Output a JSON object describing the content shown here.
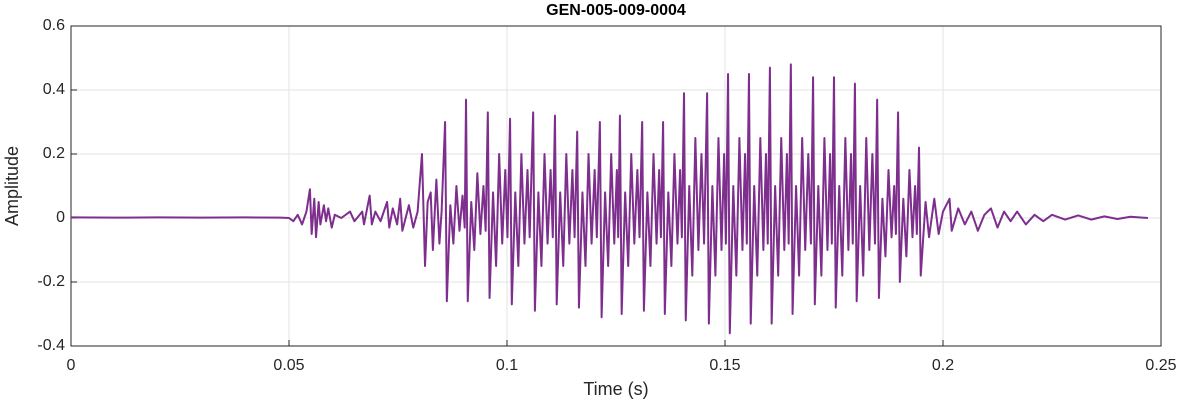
{
  "chart_data": {
    "type": "line",
    "title": "GEN-005-009-0004",
    "xlabel": "Time (s)",
    "ylabel": "Amplitude",
    "xlim": [
      0,
      0.25
    ],
    "xticks": [
      0,
      0.05,
      0.1,
      0.15,
      0.2,
      0.25
    ],
    "ylim": [
      -0.4,
      0.6
    ],
    "yticks": [
      -0.4,
      -0.2,
      0,
      0.2,
      0.4,
      0.6
    ],
    "grid": true,
    "x": [
      0,
      0.01,
      0.02,
      0.03,
      0.04,
      0.048,
      0.05,
      0.051,
      0.052,
      0.053,
      0.054,
      0.0548,
      0.0552,
      0.0558,
      0.0562,
      0.0568,
      0.0572,
      0.058,
      0.0585,
      0.059,
      0.0598,
      0.0605,
      0.062,
      0.064,
      0.065,
      0.0668,
      0.0672,
      0.0685,
      0.069,
      0.0698,
      0.071,
      0.0725,
      0.073,
      0.0738,
      0.0748,
      0.0755,
      0.076,
      0.0775,
      0.0785,
      0.0795,
      0.0805,
      0.0812,
      0.0818,
      0.0825,
      0.083,
      0.0838,
      0.0845,
      0.085,
      0.0858,
      0.0862,
      0.087,
      0.0877,
      0.0884,
      0.0891,
      0.0898,
      0.0903,
      0.0906,
      0.091,
      0.0918,
      0.0925,
      0.0932,
      0.0939,
      0.0946,
      0.0951,
      0.0956,
      0.096,
      0.0968,
      0.0975,
      0.0982,
      0.0989,
      0.0996,
      0.1001,
      0.1007,
      0.1011,
      0.1019,
      0.1026,
      0.1033,
      0.104,
      0.1047,
      0.1052,
      0.106,
      0.1064,
      0.1072,
      0.1079,
      0.1086,
      0.1093,
      0.11,
      0.1105,
      0.111,
      0.1114,
      0.1122,
      0.1129,
      0.1136,
      0.1143,
      0.115,
      0.1155,
      0.1161,
      0.1165,
      0.1173,
      0.118,
      0.1187,
      0.1194,
      0.1201,
      0.1206,
      0.1213,
      0.1217,
      0.1225,
      0.1232,
      0.1239,
      0.1246,
      0.1252,
      0.1255,
      0.1259,
      0.1263,
      0.1271,
      0.1278,
      0.1285,
      0.1292,
      0.1299,
      0.1304,
      0.131,
      0.1314,
      0.1322,
      0.1329,
      0.1336,
      0.1343,
      0.1349,
      0.1353,
      0.1358,
      0.1362,
      0.137,
      0.1377,
      0.1384,
      0.1391,
      0.1397,
      0.1401,
      0.1406,
      0.141,
      0.1418,
      0.1425,
      0.1432,
      0.1439,
      0.1446,
      0.1452,
      0.1459,
      0.1463,
      0.1471,
      0.1478,
      0.1485,
      0.1492,
      0.1498,
      0.1502,
      0.1507,
      0.1511,
      0.1519,
      0.1526,
      0.1533,
      0.154,
      0.1546,
      0.155,
      0.1555,
      0.1559,
      0.1567,
      0.1574,
      0.1581,
      0.1588,
      0.1594,
      0.1598,
      0.1603,
      0.1607,
      0.1615,
      0.1622,
      0.1629,
      0.1636,
      0.1642,
      0.1646,
      0.1651,
      0.1655,
      0.1663,
      0.167,
      0.1677,
      0.1684,
      0.1691,
      0.1697,
      0.1702,
      0.1706,
      0.1714,
      0.1721,
      0.1728,
      0.1735,
      0.1741,
      0.1745,
      0.175,
      0.1754,
      0.1762,
      0.1769,
      0.1776,
      0.1783,
      0.1789,
      0.1793,
      0.1798,
      0.1802,
      0.181,
      0.1817,
      0.1824,
      0.1831,
      0.1838,
      0.1844,
      0.1849,
      0.1853,
      0.1861,
      0.1868,
      0.1875,
      0.1882,
      0.1888,
      0.1892,
      0.1897,
      0.1901,
      0.1909,
      0.1916,
      0.1923,
      0.193,
      0.1936,
      0.194,
      0.1945,
      0.1949,
      0.196,
      0.1968,
      0.198,
      0.199,
      0.2,
      0.2015,
      0.202,
      0.2035,
      0.205,
      0.2065,
      0.208,
      0.2095,
      0.211,
      0.2125,
      0.214,
      0.2155,
      0.217,
      0.219,
      0.221,
      0.223,
      0.225,
      0.228,
      0.231,
      0.234,
      0.237,
      0.24,
      0.243,
      0.247
    ],
    "series": [
      {
        "color": "#7e2f8e",
        "values": [
          0.002,
          0.001,
          0.002,
          0.001,
          0.002,
          0.001,
          0,
          -0.01,
          0.01,
          -0.02,
          0.02,
          0.09,
          -0.05,
          0.06,
          -0.06,
          0.05,
          -0.02,
          0.04,
          -0.01,
          0.03,
          -0.03,
          0.01,
          0,
          0.02,
          -0.01,
          0.02,
          -0.02,
          0.07,
          -0.02,
          0.02,
          -0.01,
          0.05,
          -0.03,
          0.03,
          -0.02,
          0.06,
          -0.04,
          0.04,
          -0.03,
          0.02,
          0.2,
          -0.15,
          0.05,
          0.08,
          -0.1,
          0.12,
          -0.08,
          0.02,
          0.3,
          -0.26,
          0.04,
          -0.08,
          0.1,
          -0.04,
          0.07,
          -0.03,
          0.37,
          -0.26,
          0.05,
          -0.1,
          0.14,
          -0.05,
          0.1,
          -0.04,
          0.33,
          -0.25,
          0.08,
          -0.15,
          0.2,
          -0.08,
          0.15,
          -0.06,
          0.31,
          -0.27,
          0.08,
          -0.15,
          0.2,
          -0.08,
          0.15,
          -0.06,
          0.33,
          -0.29,
          0.08,
          -0.15,
          0.2,
          -0.08,
          0.15,
          -0.06,
          0.32,
          -0.27,
          0.08,
          -0.15,
          0.2,
          -0.08,
          0.15,
          -0.06,
          0.27,
          -0.28,
          0.08,
          -0.15,
          0.2,
          -0.08,
          0.15,
          -0.06,
          0.3,
          -0.31,
          0.08,
          -0.15,
          0.2,
          -0.08,
          0.15,
          -0.06,
          0.32,
          -0.3,
          0.08,
          -0.15,
          0.2,
          -0.08,
          0.15,
          -0.06,
          0.3,
          -0.29,
          0.08,
          -0.15,
          0.2,
          -0.08,
          0.15,
          -0.06,
          0.3,
          -0.3,
          0.08,
          -0.15,
          0.2,
          -0.08,
          0.15,
          -0.06,
          0.39,
          -0.32,
          0.1,
          -0.18,
          0.25,
          -0.1,
          0.2,
          -0.08,
          0.39,
          -0.33,
          0.1,
          -0.18,
          0.25,
          -0.1,
          0.2,
          -0.08,
          0.45,
          -0.36,
          0.1,
          -0.18,
          0.25,
          -0.1,
          0.2,
          -0.08,
          0.45,
          -0.33,
          0.1,
          -0.18,
          0.25,
          -0.1,
          0.2,
          -0.08,
          0.47,
          -0.33,
          0.1,
          -0.18,
          0.25,
          -0.1,
          0.2,
          -0.08,
          0.48,
          -0.3,
          0.1,
          -0.18,
          0.25,
          -0.1,
          0.2,
          -0.08,
          0.44,
          -0.27,
          0.1,
          -0.18,
          0.25,
          -0.1,
          0.2,
          -0.08,
          0.44,
          -0.28,
          0.1,
          -0.18,
          0.25,
          -0.1,
          0.2,
          -0.08,
          0.42,
          -0.26,
          0.1,
          -0.18,
          0.25,
          -0.1,
          0.2,
          -0.08,
          0.37,
          -0.25,
          0.06,
          -0.12,
          0.15,
          -0.06,
          0.1,
          -0.05,
          0.33,
          -0.2,
          0.06,
          -0.12,
          0.15,
          -0.06,
          0.1,
          -0.05,
          0.22,
          -0.18,
          0.05,
          -0.06,
          0.06,
          -0.05,
          0.02,
          0.06,
          -0.04,
          0.03,
          -0.02,
          0.02,
          -0.04,
          0.01,
          0.03,
          -0.03,
          0.02,
          -0.01,
          0.02,
          -0.02,
          0.01,
          -0.01,
          0.01,
          -0.005,
          0.008,
          -0.005,
          0.005,
          -0.003,
          0.004,
          0
        ]
      }
    ]
  }
}
